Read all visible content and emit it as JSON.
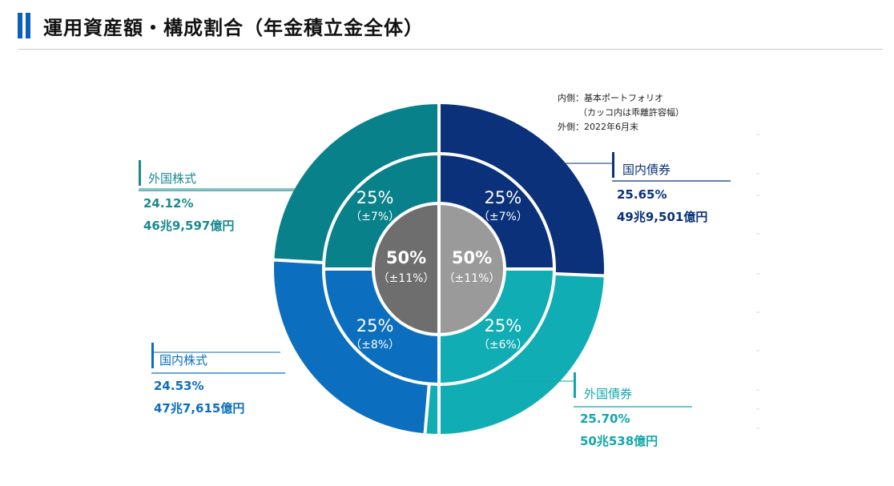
{
  "header": {
    "title": "運用資産額・構成割合（年金積立金全体）"
  },
  "note": {
    "line1": "内側：基本ポートフォリオ",
    "line2": "（カッコ内は乖離許容幅）",
    "line3": "外側：2022年6月末"
  },
  "chart_data": {
    "type": "pie",
    "outer_ring": [
      {
        "name": "国内債券",
        "percent_label": "25.65%",
        "amount": "49兆9,501億円",
        "value": 25.65,
        "color": "#0a317a",
        "label_color": "#0a317a"
      },
      {
        "name": "外国債券",
        "percent_label": "25.70%",
        "amount": "50兆538億円",
        "value": 25.7,
        "color": "#10adb4",
        "label_color": "#12a6ab"
      },
      {
        "name": "国内株式",
        "percent_label": "24.53%",
        "amount": "47兆7,615億円",
        "value": 24.53,
        "color": "#0c6ebf",
        "label_color": "#0c6ebf"
      },
      {
        "name": "外国株式",
        "percent_label": "24.12%",
        "amount": "46兆9,597億円",
        "value": 24.12,
        "color": "#08818a",
        "label_color": "#1a8a90"
      }
    ],
    "inner_ring": [
      {
        "label": "25%",
        "band": "（±7%）",
        "value": 25,
        "color": "#0a317a"
      },
      {
        "label": "25%",
        "band": "（±6%）",
        "value": 25,
        "color": "#10adb4"
      },
      {
        "label": "25%",
        "band": "（±8%）",
        "value": 25,
        "color": "#0c6ebf"
      },
      {
        "label": "25%",
        "band": "（±7%）",
        "value": 25,
        "color": "#08818a"
      }
    ],
    "core": [
      {
        "label": "50%",
        "band": "（±11%）",
        "value": 50,
        "color": "#9a9a9a"
      },
      {
        "label": "50%",
        "band": "（±11%）",
        "value": 50,
        "color": "#6e6e6e"
      }
    ]
  }
}
